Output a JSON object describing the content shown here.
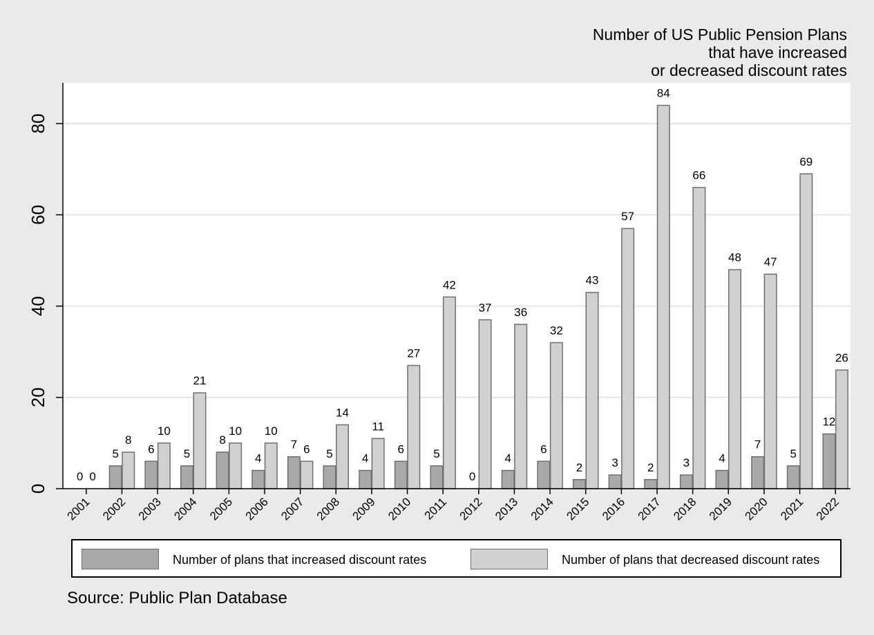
{
  "title_lines": [
    "Number of US Public Pension Plans",
    "that have increased",
    "or decreased discount rates"
  ],
  "source": "Source: Public Plan Database",
  "legend": {
    "increased_label": "Number of plans that increased discount rates",
    "decreased_label": "Number of plans that decreased discount rates"
  },
  "colors": {
    "background": "#eaeaea",
    "plot_background": "#ffffff",
    "increased": "#a9a9a9",
    "decreased": "#d1d1d1",
    "bar_border": "#6f6f6f",
    "gridline": "#e6e6e6"
  },
  "chart_data": {
    "type": "bar",
    "title": "Number of US Public Pension Plans that have increased or decreased discount rates",
    "xlabel": "",
    "ylabel": "",
    "ylim": [
      0,
      88
    ],
    "yticks": [
      0,
      20,
      40,
      60,
      80
    ],
    "grid": true,
    "legend_position": "bottom",
    "categories": [
      "2001",
      "2002",
      "2003",
      "2004",
      "2005",
      "2006",
      "2007",
      "2008",
      "2009",
      "2010",
      "2011",
      "2012",
      "2013",
      "2014",
      "2015",
      "2016",
      "2017",
      "2018",
      "2019",
      "2020",
      "2021",
      "2022"
    ],
    "series": [
      {
        "name": "Number of plans that increased discount rates",
        "values": [
          0,
          5,
          6,
          5,
          8,
          4,
          7,
          5,
          4,
          6,
          5,
          0,
          4,
          6,
          2,
          3,
          2,
          3,
          4,
          7,
          5,
          12
        ]
      },
      {
        "name": "Number of plans that decreased discount rates",
        "values": [
          0,
          8,
          10,
          21,
          10,
          10,
          6,
          14,
          11,
          27,
          42,
          37,
          36,
          32,
          43,
          57,
          84,
          66,
          48,
          47,
          69,
          26
        ]
      }
    ]
  }
}
